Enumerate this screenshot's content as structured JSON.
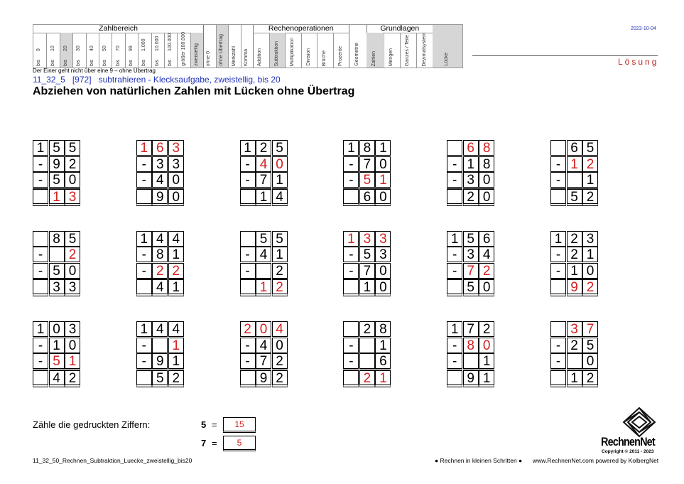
{
  "header": {
    "groups": [
      {
        "title": "Zahlbereich",
        "columns": [
          {
            "label": "9",
            "sub": "bis"
          },
          {
            "label": "10",
            "sub": "bis"
          },
          {
            "label": "20",
            "sub": "bis",
            "selected": true
          },
          {
            "label": "30",
            "sub": "bis"
          },
          {
            "label": "40",
            "sub": "bis"
          },
          {
            "label": "50",
            "sub": "bis"
          },
          {
            "label": "70",
            "sub": "bis"
          },
          {
            "label": "99",
            "sub": "bis"
          },
          {
            "label": "1.000",
            "sub": "bis"
          },
          {
            "label": "10.000",
            "sub": "bis"
          },
          {
            "label": "100.000",
            "sub": "bis"
          },
          {
            "label": "größer 100.000"
          },
          {
            "label": "zweistellig",
            "selected": true
          }
        ]
      },
      {
        "columns": [
          {
            "label": "ohne 0"
          },
          {
            "label": "ohne Übertrag",
            "selected": true
          },
          {
            "label": "Merkzahl"
          },
          {
            "label": "Komma"
          }
        ]
      },
      {
        "title": "Rechenoperationen",
        "columns": [
          {
            "label": "Addition"
          },
          {
            "label": "Subtraktion",
            "selected": true
          },
          {
            "label": "Multiplikation"
          },
          {
            "label": "Division"
          },
          {
            "label": "Brüche"
          },
          {
            "label": "Prozente"
          }
        ]
      },
      {
        "columns": [
          {
            "label": "Geometrie"
          }
        ]
      },
      {
        "title": "Grundlagen",
        "columns": [
          {
            "label": "Zahlen",
            "selected": true
          },
          {
            "label": "Mengen"
          },
          {
            "label": "Ganzes / Teile"
          },
          {
            "label": "Dezimalsystem"
          }
        ]
      },
      {
        "columns": [
          {
            "label": "Lücke",
            "selected": true
          }
        ]
      }
    ],
    "note": "Der Einer geht nicht über eine 9 – ohne Übertrag",
    "date": "2023-10-04",
    "solution": "Lösung"
  },
  "task": {
    "code": "11_32_5",
    "id": "[972]",
    "description": "subtrahieren - Klecksaufgabe, zweistellig, bis 20",
    "title": "Abziehen von natürlichen Zahlen mit Lücken ohne Übertrag"
  },
  "problems": [
    [
      [
        "1",
        "5",
        "5"
      ],
      [
        "-",
        "9",
        "2"
      ],
      [
        "-",
        "5",
        "0"
      ],
      [
        "",
        {
          "text": "1",
          "color": "red"
        },
        {
          "text": "3",
          "color": "red"
        }
      ]
    ],
    [
      [
        {
          "text": "1",
          "color": "red"
        },
        {
          "text": "6",
          "color": "red"
        },
        {
          "text": "3",
          "color": "red"
        }
      ],
      [
        "-",
        "3",
        "3"
      ],
      [
        "-",
        "4",
        "0"
      ],
      [
        "",
        "9",
        "0"
      ]
    ],
    [
      [
        "1",
        "2",
        "5"
      ],
      [
        "-",
        {
          "text": "4",
          "color": "red"
        },
        {
          "text": "0",
          "color": "red"
        }
      ],
      [
        "-",
        "7",
        "1"
      ],
      [
        "",
        "1",
        "4"
      ]
    ],
    [
      [
        "1",
        "8",
        "1"
      ],
      [
        "-",
        "7",
        "0"
      ],
      [
        "-",
        {
          "text": "5",
          "color": "red"
        },
        {
          "text": "1",
          "color": "red"
        }
      ],
      [
        "",
        "6",
        "0"
      ]
    ],
    [
      [
        "",
        {
          "text": "6",
          "color": "red"
        },
        {
          "text": "8",
          "color": "red"
        }
      ],
      [
        "-",
        "1",
        "8"
      ],
      [
        "-",
        "3",
        "0"
      ],
      [
        "",
        "2",
        "0"
      ]
    ],
    [
      [
        "",
        "6",
        "5"
      ],
      [
        "-",
        {
          "text": "1",
          "color": "red"
        },
        {
          "text": "2",
          "color": "red"
        }
      ],
      [
        "-",
        "",
        "1"
      ],
      [
        "",
        "5",
        "2"
      ]
    ],
    [
      [
        "",
        "8",
        "5"
      ],
      [
        "-",
        "",
        {
          "text": "2",
          "color": "red"
        }
      ],
      [
        "-",
        "5",
        "0"
      ],
      [
        "",
        "3",
        "3"
      ]
    ],
    [
      [
        "1",
        "4",
        "4"
      ],
      [
        "-",
        "8",
        "1"
      ],
      [
        "-",
        {
          "text": "2",
          "color": "red"
        },
        {
          "text": "2",
          "color": "red"
        }
      ],
      [
        "",
        "4",
        "1"
      ]
    ],
    [
      [
        "",
        "5",
        "5"
      ],
      [
        "-",
        "4",
        "1"
      ],
      [
        "-",
        "",
        "2"
      ],
      [
        "",
        {
          "text": "1",
          "color": "red"
        },
        {
          "text": "2",
          "color": "red"
        }
      ]
    ],
    [
      [
        {
          "text": "1",
          "color": "red"
        },
        {
          "text": "3",
          "color": "red"
        },
        {
          "text": "3",
          "color": "red"
        }
      ],
      [
        "-",
        "5",
        "3"
      ],
      [
        "-",
        "7",
        "0"
      ],
      [
        "",
        "1",
        "0"
      ]
    ],
    [
      [
        "1",
        "5",
        "6"
      ],
      [
        "-",
        "3",
        "4"
      ],
      [
        "-",
        {
          "text": "7",
          "color": "red"
        },
        {
          "text": "2",
          "color": "red"
        }
      ],
      [
        "",
        "5",
        "0"
      ]
    ],
    [
      [
        "1",
        "2",
        "3"
      ],
      [
        "-",
        "2",
        "1"
      ],
      [
        "-",
        "1",
        "0"
      ],
      [
        "",
        {
          "text": "9",
          "color": "red"
        },
        {
          "text": "2",
          "color": "red"
        }
      ]
    ],
    [
      [
        "1",
        "0",
        "3"
      ],
      [
        "-",
        "1",
        "0"
      ],
      [
        "-",
        {
          "text": "5",
          "color": "red"
        },
        {
          "text": "1",
          "color": "red"
        }
      ],
      [
        "",
        "4",
        "2"
      ]
    ],
    [
      [
        "1",
        "4",
        "4"
      ],
      [
        "-",
        "",
        {
          "text": "1",
          "color": "red"
        }
      ],
      [
        "-",
        "9",
        "1"
      ],
      [
        "",
        "5",
        "2"
      ]
    ],
    [
      [
        {
          "text": "2",
          "color": "red"
        },
        {
          "text": "0",
          "color": "red"
        },
        {
          "text": "4",
          "color": "red"
        }
      ],
      [
        "-",
        "4",
        "0"
      ],
      [
        "-",
        "7",
        "2"
      ],
      [
        "",
        "9",
        "2"
      ]
    ],
    [
      [
        "",
        "2",
        "8"
      ],
      [
        "-",
        "",
        "1"
      ],
      [
        "-",
        "",
        "6"
      ],
      [
        "",
        {
          "text": "2",
          "color": "red"
        },
        {
          "text": "1",
          "color": "red"
        }
      ]
    ],
    [
      [
        "1",
        "7",
        "2"
      ],
      [
        "-",
        {
          "text": "8",
          "color": "red"
        },
        {
          "text": "0",
          "color": "red"
        }
      ],
      [
        "-",
        "",
        "1"
      ],
      [
        "",
        "9",
        "1"
      ]
    ],
    [
      [
        "",
        {
          "text": "3",
          "color": "red"
        },
        {
          "text": "7",
          "color": "red"
        }
      ],
      [
        "-",
        "2",
        "5"
      ],
      [
        "-",
        "",
        "0"
      ],
      [
        "",
        "1",
        "2"
      ]
    ]
  ],
  "count": {
    "label": "Zähle die gedruckten Ziffern:",
    "rows": [
      {
        "digit": "5",
        "eq": "=",
        "answer": "15"
      },
      {
        "digit": "7",
        "eq": "=",
        "answer": "5"
      }
    ]
  },
  "footer": {
    "filename": "11_32_50_Rechnen_Subtraktion_Luecke_zweistellig_bis20",
    "motto": "● Rechnen in kleinen Schritten ●",
    "website": "www.RechnenNet.com powered by KolbergNet",
    "logo": "RechnenNet",
    "copyright": "Copyright © 2011 - 2023"
  }
}
